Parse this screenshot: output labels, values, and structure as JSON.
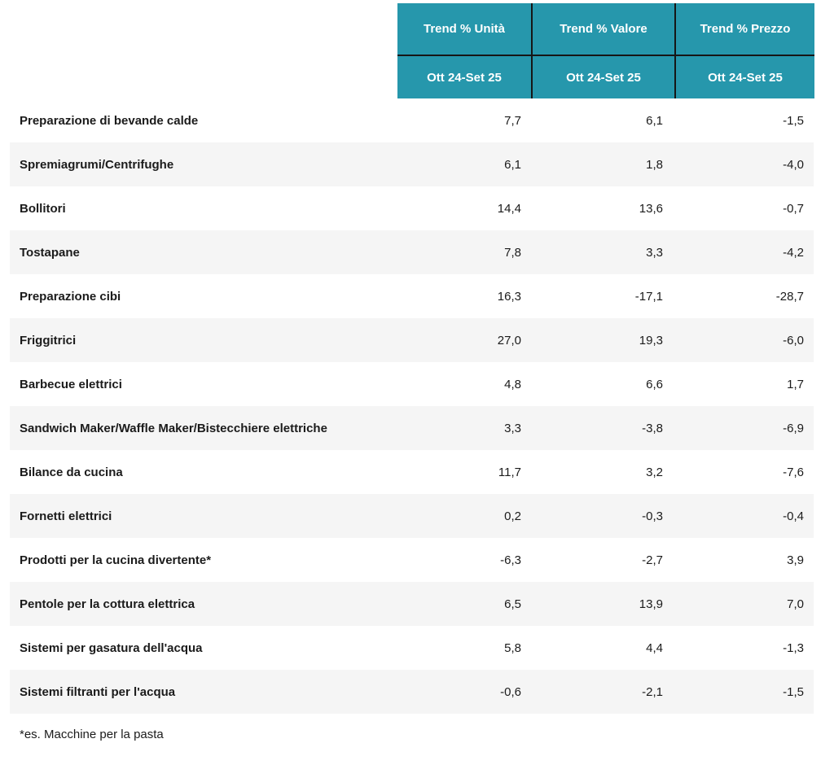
{
  "table": {
    "columns": [
      {
        "label": "Trend % Unità",
        "period": "Ott 24-Set 25"
      },
      {
        "label": "Trend % Valore",
        "period": "Ott 24-Set 25"
      },
      {
        "label": "Trend % Prezzo",
        "period": "Ott 24-Set 25"
      }
    ],
    "rows": [
      {
        "category": "Preparazione di bevande calde",
        "values": [
          "7,7",
          "6,1",
          "-1,5"
        ]
      },
      {
        "category": "Spremiagrumi/Centrifughe",
        "values": [
          "6,1",
          "1,8",
          "-4,0"
        ]
      },
      {
        "category": "Bollitori",
        "values": [
          "14,4",
          "13,6",
          "-0,7"
        ]
      },
      {
        "category": "Tostapane",
        "values": [
          "7,8",
          "3,3",
          "-4,2"
        ]
      },
      {
        "category": "Preparazione cibi",
        "values": [
          "16,3",
          "-17,1",
          "-28,7"
        ]
      },
      {
        "category": "Friggitrici",
        "values": [
          "27,0",
          "19,3",
          "-6,0"
        ]
      },
      {
        "category": "Barbecue elettrici",
        "values": [
          "4,8",
          "6,6",
          "1,7"
        ]
      },
      {
        "category": "Sandwich Maker/Waffle Maker/Bistecchiere elettriche",
        "values": [
          "3,3",
          "-3,8",
          "-6,9"
        ]
      },
      {
        "category": "Bilance da cucina",
        "values": [
          "11,7",
          "3,2",
          "-7,6"
        ]
      },
      {
        "category": "Fornetti elettrici",
        "values": [
          "0,2",
          "-0,3",
          "-0,4"
        ]
      },
      {
        "category": "Prodotti per la cucina divertente*",
        "values": [
          "-6,3",
          "-2,7",
          "3,9"
        ]
      },
      {
        "category": "Pentole per la cottura elettrica",
        "values": [
          "6,5",
          "13,9",
          "7,0"
        ]
      },
      {
        "category": "Sistemi per gasatura dell'acqua",
        "values": [
          "5,8",
          "4,4",
          "-1,3"
        ]
      },
      {
        "category": "Sistemi filtranti per l'acqua",
        "values": [
          "-0,6",
          "-2,1",
          "-1,5"
        ]
      }
    ],
    "footnote": "*es. Macchine per la pasta"
  },
  "colors": {
    "header_bg": "#2697ac",
    "header_text": "#ffffff",
    "divider": "#161616",
    "row_alt_bg": "#f5f5f5",
    "text": "#1b1b1b"
  },
  "chart_data": {
    "type": "table",
    "title": "",
    "categories": [
      "Preparazione di bevande calde",
      "Spremiagrumi/Centrifughe",
      "Bollitori",
      "Tostapane",
      "Preparazione cibi",
      "Friggitrici",
      "Barbecue elettrici",
      "Sandwich Maker/Waffle Maker/Bistecchiere elettriche",
      "Bilance da cucina",
      "Fornetti elettrici",
      "Prodotti per la cucina divertente*",
      "Pentole per la cottura elettrica",
      "Sistemi per gasatura dell'acqua",
      "Sistemi filtranti per l'acqua"
    ],
    "series": [
      {
        "name": "Trend % Unità (Ott 24-Set 25)",
        "values": [
          7.7,
          6.1,
          14.4,
          7.8,
          16.3,
          27.0,
          4.8,
          3.3,
          11.7,
          0.2,
          -6.3,
          6.5,
          5.8,
          -0.6
        ]
      },
      {
        "name": "Trend % Valore (Ott 24-Set 25)",
        "values": [
          6.1,
          1.8,
          13.6,
          3.3,
          -17.1,
          19.3,
          6.6,
          -3.8,
          3.2,
          -0.3,
          -2.7,
          13.9,
          4.4,
          -2.1
        ]
      },
      {
        "name": "Trend % Prezzo (Ott 24-Set 25)",
        "values": [
          -1.5,
          -4.0,
          -0.7,
          -4.2,
          -28.7,
          -6.0,
          1.7,
          -6.9,
          -7.6,
          -0.4,
          3.9,
          7.0,
          -1.3,
          -1.5
        ]
      }
    ],
    "footnote": "*es. Macchine per la pasta",
    "layout": {
      "decimal_separator": ",",
      "values_align": "right",
      "striped_rows": true
    }
  }
}
